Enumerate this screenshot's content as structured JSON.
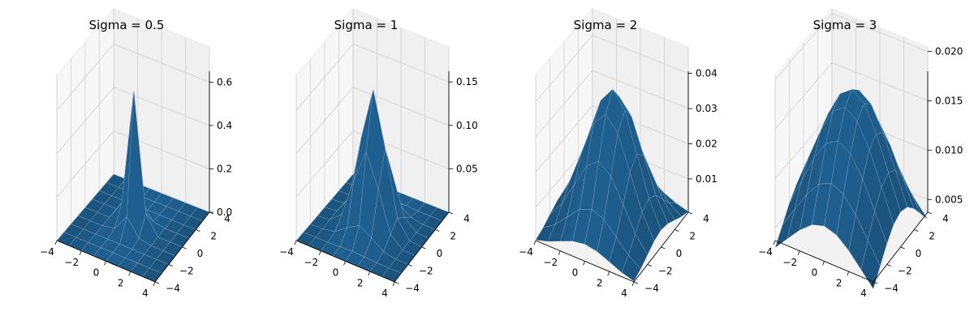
{
  "chart_data": [
    {
      "type": "surface",
      "title": "Sigma = 0.5",
      "sigma": 0.5,
      "x": [
        -4,
        -3,
        -2,
        -1,
        0,
        1,
        2,
        3,
        4
      ],
      "y": [
        -4,
        -3,
        -2,
        -1,
        0,
        1,
        2,
        3,
        4
      ],
      "xticks": [
        -4,
        -2,
        0,
        2,
        4
      ],
      "yticks": [
        -4,
        -2,
        0,
        2,
        4
      ],
      "zticks": [
        "0.0",
        "0.2",
        "0.4",
        "0.6"
      ],
      "zlim": [
        0,
        0.637
      ],
      "peak": 0.637,
      "color": "#1f5f8f"
    },
    {
      "type": "surface",
      "title": "Sigma = 1",
      "sigma": 1,
      "x": [
        -4,
        -3,
        -2,
        -1,
        0,
        1,
        2,
        3,
        4
      ],
      "y": [
        -4,
        -3,
        -2,
        -1,
        0,
        1,
        2,
        3,
        4
      ],
      "xticks": [
        -4,
        -2,
        0,
        2,
        4
      ],
      "yticks": [
        -4,
        -2,
        0,
        2,
        4
      ],
      "zticks": [
        "0.05",
        "0.10",
        "0.15"
      ],
      "zlim": [
        0,
        0.159
      ],
      "peak": 0.159,
      "color": "#1f5f8f"
    },
    {
      "type": "surface",
      "title": "Sigma = 2",
      "sigma": 2,
      "x": [
        -4,
        -3,
        -2,
        -1,
        0,
        1,
        2,
        3,
        4
      ],
      "y": [
        -4,
        -3,
        -2,
        -1,
        0,
        1,
        2,
        3,
        4
      ],
      "xticks": [
        -4,
        -2,
        0,
        2,
        4
      ],
      "yticks": [
        -4,
        -2,
        0,
        2,
        4
      ],
      "zticks": [
        "0.01",
        "0.02",
        "0.03",
        "0.04"
      ],
      "zlim": [
        0.00054,
        0.0398
      ],
      "peak": 0.0398,
      "color": "#1f5f8f"
    },
    {
      "type": "surface",
      "title": "Sigma = 3",
      "sigma": 3,
      "x": [
        -4,
        -3,
        -2,
        -1,
        0,
        1,
        2,
        3,
        4
      ],
      "y": [
        -4,
        -3,
        -2,
        -1,
        0,
        1,
        2,
        3,
        4
      ],
      "xticks": [
        -4,
        -2,
        0,
        2,
        4
      ],
      "yticks": [
        -4,
        -2,
        0,
        2,
        4
      ],
      "zticks": [
        "0.005",
        "0.010",
        "0.015",
        "0.020"
      ],
      "zlim": [
        0.00371,
        0.0177
      ],
      "peak": 0.0177,
      "color": "#1f5f8f"
    }
  ]
}
